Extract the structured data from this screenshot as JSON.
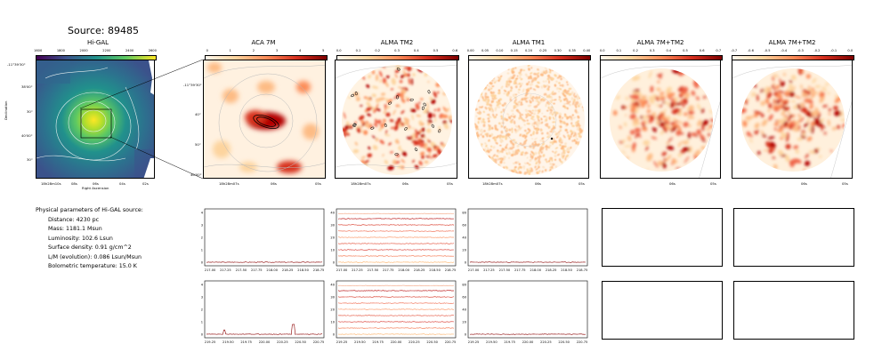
{
  "figure": {
    "title": "Source: 89485"
  },
  "params": {
    "header": "Physical parameters of Hi-GAL source:",
    "lines": [
      "Distance: 4230 pc",
      "Mass: 1181.1 Msun",
      "Luminosity: 102.6 Lsun",
      "Surface density: 0.91 g/cm^2",
      "L/M (evolution): 0.086 Lsun/Msun",
      "Bolometric temperature: 15.0 K"
    ]
  },
  "colors": {
    "viridis_low": "#440154",
    "viridis_mid": "#21918c",
    "viridis_high": "#fde725",
    "orrd_low": "#fff7ec",
    "orrd_high": "#7f0000",
    "spectrum_line": "#8b0000"
  },
  "chart_data": [
    {
      "type": "heatmap",
      "title": "Hi-GAL",
      "xlabel": "Right Ascension",
      "ylabel": "Declination",
      "colorbar_ticks": [
        "1600",
        "1800",
        "2000",
        "2200",
        "2400",
        "2600"
      ],
      "x_ticks": [
        "18h28m10s",
        "08s",
        "06s",
        "04s",
        "02s"
      ],
      "y_ticks": [
        "-11°39'30\"",
        "38'00\"",
        "30\"",
        "40'00\"",
        "30\""
      ]
    },
    {
      "type": "heatmap",
      "title": "ACA 7M",
      "colorbar_ticks": [
        "0",
        "1",
        "2",
        "3",
        "4",
        "5"
      ],
      "x_ticks": [
        "18h28m07s",
        "06s",
        "05s"
      ],
      "y_ticks": [
        "-11°39'30\"",
        "40\"",
        "50\"",
        "40'00\""
      ]
    },
    {
      "type": "heatmap",
      "title": "ALMA TM2",
      "colorbar_ticks": [
        "0.0",
        "0.1",
        "0.2",
        "0.3",
        "0.4",
        "0.5",
        "0.6"
      ],
      "x_ticks": [
        "18h28m07s",
        "06s",
        "05s"
      ]
    },
    {
      "type": "heatmap",
      "title": "ALMA TM1",
      "colorbar_ticks": [
        "0.00",
        "0.05",
        "0.10",
        "0.15",
        "0.20",
        "0.25",
        "0.30",
        "0.35",
        "0.40"
      ],
      "x_ticks": [
        "18h28m07s",
        "06s",
        "05s"
      ]
    },
    {
      "type": "heatmap",
      "title": "ALMA 7M+TM2",
      "colorbar_ticks": [
        "0.0",
        "0.1",
        "0.2",
        "0.3",
        "0.4",
        "0.5",
        "0.6",
        "0.7"
      ],
      "x_ticks": [
        "06s",
        "05s"
      ]
    },
    {
      "type": "heatmap",
      "title": "ALMA 7M+TM2",
      "colorbar_ticks": [
        "-0.7",
        "-0.6",
        "-0.5",
        "-0.4",
        "-0.3",
        "-0.2",
        "-0.1",
        "0.0"
      ],
      "x_ticks": [
        "06s",
        "05s"
      ]
    },
    {
      "type": "line",
      "row": 1,
      "panels": [
        {
          "y_ticks": [
            "0",
            "1",
            "2",
            "3",
            "4"
          ],
          "ylim": [
            0,
            4
          ],
          "x_ticks": [
            "217.00",
            "217.25",
            "217.50",
            "217.75",
            "218.00",
            "218.25",
            "218.50",
            "218.75"
          ]
        },
        {
          "y_ticks": [
            "0",
            "10",
            "20",
            "30",
            "40"
          ],
          "ylim": [
            0,
            40
          ],
          "x_ticks": [
            "217.00",
            "217.25",
            "217.50",
            "217.75",
            "218.00",
            "218.25",
            "218.50",
            "218.75"
          ],
          "offsets": [
            0,
            5,
            10,
            15,
            20,
            25,
            30,
            35,
            39
          ]
        },
        {
          "y_ticks": [
            "0",
            "20",
            "40",
            "60",
            "80"
          ],
          "ylim": [
            0,
            80
          ],
          "x_ticks": [
            "217.00",
            "217.25",
            "217.50",
            "217.75",
            "218.00",
            "218.25",
            "218.50",
            "218.75"
          ]
        }
      ]
    },
    {
      "type": "line",
      "row": 2,
      "panels": [
        {
          "y_ticks": [
            "0",
            "1",
            "2",
            "3",
            "4"
          ],
          "ylim": [
            0,
            4
          ],
          "x_ticks": [
            "219.25",
            "219.50",
            "219.75",
            "220.00",
            "220.25",
            "220.50",
            "220.75"
          ],
          "peaks": [
            {
              "x": 219.45,
              "y": 0.35
            },
            {
              "x": 220.4,
              "y": 0.8
            }
          ]
        },
        {
          "y_ticks": [
            "0",
            "10",
            "20",
            "30",
            "40"
          ],
          "ylim": [
            0,
            40
          ],
          "x_ticks": [
            "219.25",
            "219.50",
            "219.75",
            "220.00",
            "220.25",
            "220.50",
            "220.75"
          ],
          "offsets": [
            0,
            5,
            10,
            15,
            20,
            25,
            30,
            35,
            39
          ]
        },
        {
          "y_ticks": [
            "0",
            "20",
            "40",
            "60",
            "80"
          ],
          "ylim": [
            0,
            80
          ],
          "x_ticks": [
            "219.25",
            "219.50",
            "219.75",
            "220.00",
            "220.25",
            "220.50",
            "220.75"
          ]
        }
      ]
    }
  ]
}
